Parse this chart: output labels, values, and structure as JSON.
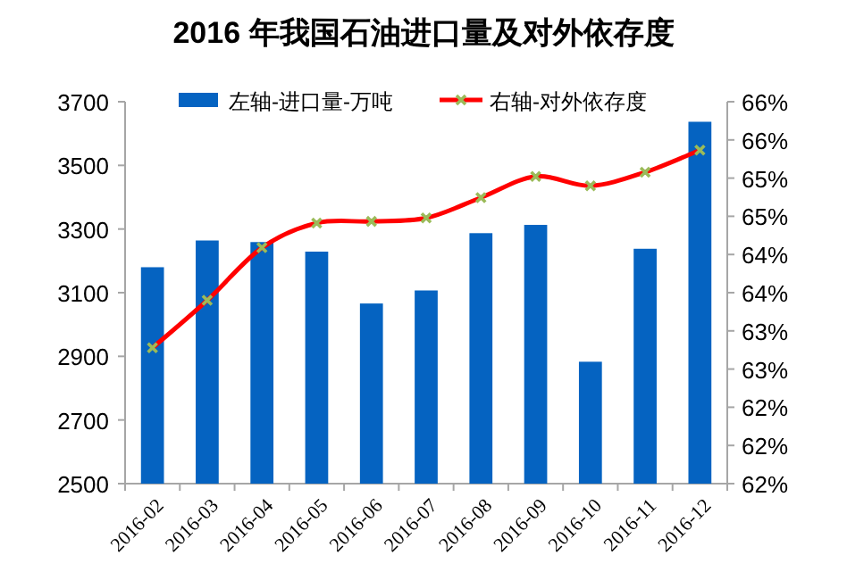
{
  "chart_data": {
    "type": "bar",
    "title": "2016 年我国石油进口量及对外依存度",
    "categories": [
      "2016-02",
      "2016-03",
      "2016-04",
      "2016-05",
      "2016-06",
      "2016-07",
      "2016-08",
      "2016-09",
      "2016-10",
      "2016-11",
      "2016-12"
    ],
    "series": [
      {
        "name": "左轴-进口量-万吨",
        "color": "#0563c1",
        "values": [
          3180,
          3264,
          3259,
          3229,
          3066,
          3107,
          3287,
          3313,
          2883,
          3238,
          3637
        ]
      },
      {
        "name": "右轴-对外依存度",
        "type": "line",
        "axis": "y2",
        "color": "#ff0000",
        "marker": "cross",
        "values": [
          63.1,
          63.66,
          64.28,
          64.57,
          64.59,
          64.63,
          64.87,
          65.12,
          65.01,
          65.17,
          65.43
        ]
      }
    ],
    "ylim": [
      2500,
      3700
    ],
    "yticks": [
      2500,
      2700,
      2900,
      3100,
      3300,
      3500,
      3700
    ],
    "y2lim": [
      61.5,
      66
    ],
    "y2ticks": [
      {
        "value": 61.5,
        "label": "62%"
      },
      {
        "value": 61.95,
        "label": "62%"
      },
      {
        "value": 62.4,
        "label": "62%"
      },
      {
        "value": 62.85,
        "label": "63%"
      },
      {
        "value": 63.3,
        "label": "63%"
      },
      {
        "value": 63.75,
        "label": "64%"
      },
      {
        "value": 64.2,
        "label": "64%"
      },
      {
        "value": 64.65,
        "label": "65%"
      },
      {
        "value": 65.1,
        "label": "65%"
      },
      {
        "value": 65.55,
        "label": "66%"
      },
      {
        "value": 66,
        "label": "66%"
      }
    ],
    "grid": false,
    "legend": "top"
  }
}
